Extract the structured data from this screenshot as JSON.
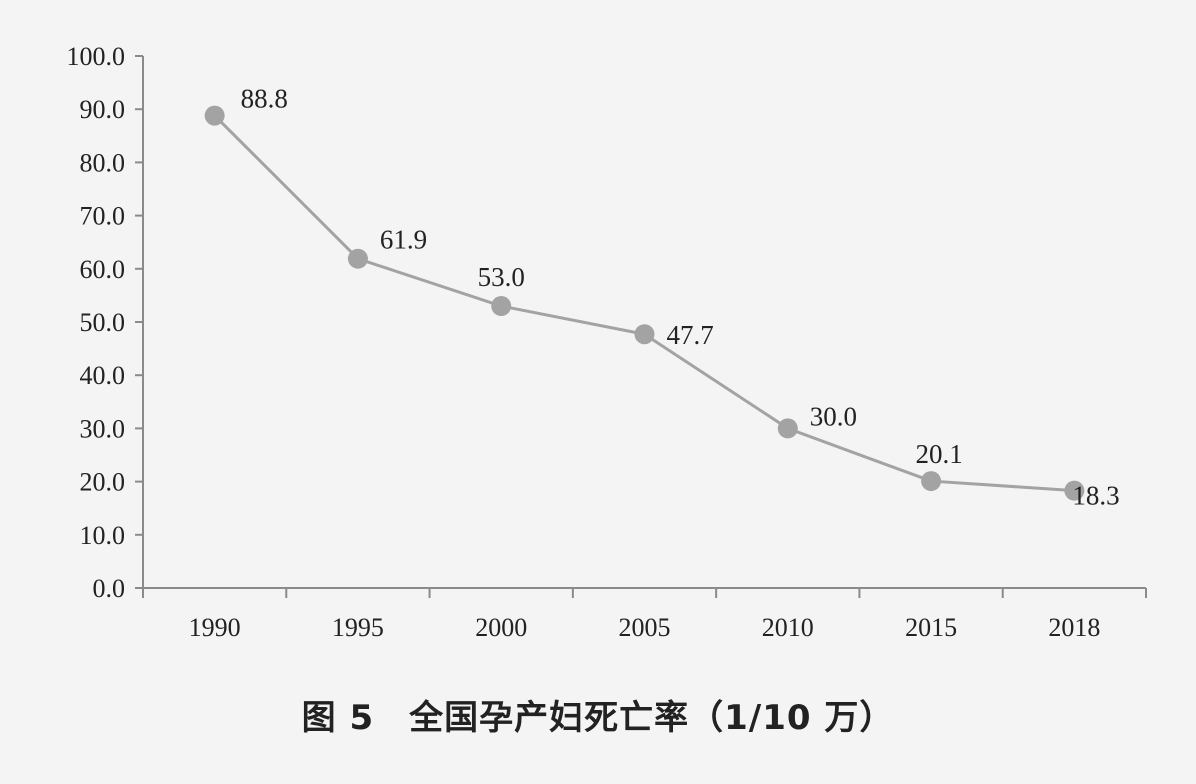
{
  "chart_data": {
    "type": "line",
    "categories": [
      "1990",
      "1995",
      "2000",
      "2005",
      "2010",
      "2015",
      "2018"
    ],
    "values": [
      88.8,
      61.9,
      53.0,
      47.7,
      30.0,
      20.1,
      18.3
    ],
    "data_labels": [
      "88.8",
      "61.9",
      "53.0",
      "47.7",
      "30.0",
      "20.1",
      "18.3"
    ],
    "y_ticks": [
      "0.0",
      "10.0",
      "20.0",
      "30.0",
      "40.0",
      "50.0",
      "60.0",
      "70.0",
      "80.0",
      "90.0",
      "100.0"
    ],
    "ylim": [
      0,
      100
    ],
    "title": "图 5　全国孕产妇死亡率（1/10 万）",
    "xlabel": "",
    "ylabel": "",
    "grid": false,
    "legend": "none",
    "colors": {
      "series": "#a3a3a3",
      "axis": "#8a8a8a",
      "background": "#f4f4f4"
    }
  }
}
